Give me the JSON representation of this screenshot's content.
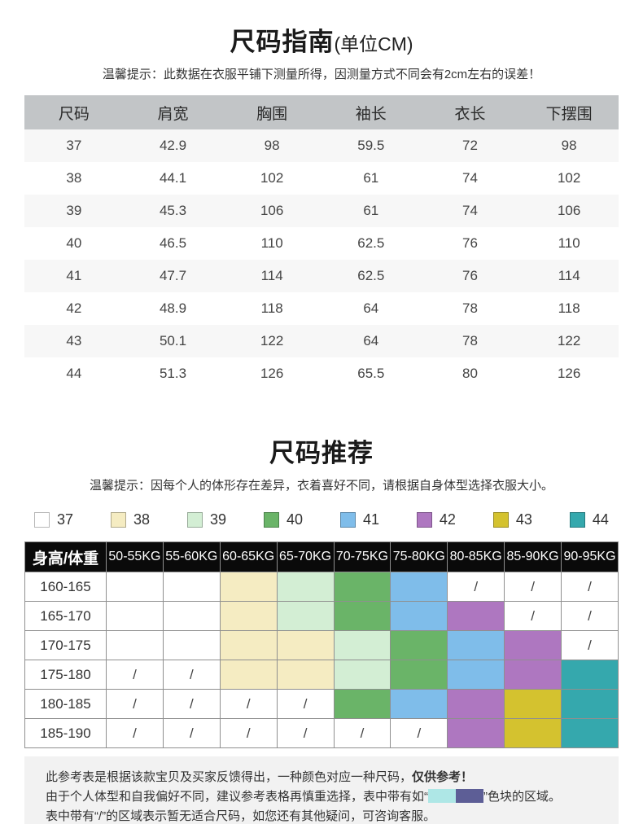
{
  "size_guide": {
    "title": "尺码指南",
    "unit_suffix": "(单位CM)",
    "tip": "温馨提示：此数据在衣服平铺下测量所得，因测量方式不同会有2cm左右的误差！",
    "columns": [
      "尺码",
      "肩宽",
      "胸围",
      "袖长",
      "衣长",
      "下摆围"
    ],
    "rows": [
      [
        "37",
        "42.9",
        "98",
        "59.5",
        "72",
        "98"
      ],
      [
        "38",
        "44.1",
        "102",
        "61",
        "74",
        "102"
      ],
      [
        "39",
        "45.3",
        "106",
        "61",
        "74",
        "106"
      ],
      [
        "40",
        "46.5",
        "110",
        "62.5",
        "76",
        "110"
      ],
      [
        "41",
        "47.7",
        "114",
        "62.5",
        "76",
        "114"
      ],
      [
        "42",
        "48.9",
        "118",
        "64",
        "78",
        "118"
      ],
      [
        "43",
        "50.1",
        "122",
        "64",
        "78",
        "122"
      ],
      [
        "44",
        "51.3",
        "126",
        "65.5",
        "80",
        "126"
      ]
    ]
  },
  "size_recommend": {
    "title": "尺码推荐",
    "tip": "温馨提示：因每个人的体形存在差异，衣着喜好不同，请根据自身体型选择衣服大小。",
    "sizes": [
      "37",
      "38",
      "39",
      "40",
      "41",
      "42",
      "43",
      "44"
    ],
    "size_colors": {
      "37": "#ffffff",
      "38": "#f5ecc2",
      "39": "#d3eed4",
      "40": "#6ab468",
      "41": "#7fbdea",
      "42": "#ae77c0",
      "43": "#d4c22f",
      "44": "#35a8ad"
    },
    "matrix": {
      "corner_label": "身高/体重",
      "weight_columns": [
        "50-55KG",
        "55-60KG",
        "60-65KG",
        "65-70KG",
        "70-75KG",
        "75-80KG",
        "80-85KG",
        "85-90KG",
        "90-95KG"
      ],
      "rows": [
        {
          "height": "160-165",
          "cells": [
            "37",
            "37",
            "38",
            "39",
            "40",
            "41",
            "/",
            "/",
            "/"
          ]
        },
        {
          "height": "165-170",
          "cells": [
            "37",
            "37",
            "38",
            "39",
            "40",
            "41",
            "42",
            "/",
            "/"
          ]
        },
        {
          "height": "170-175",
          "cells": [
            "37",
            "37",
            "38",
            "38",
            "39",
            "40",
            "41",
            "42",
            "/"
          ]
        },
        {
          "height": "175-180",
          "cells": [
            "/",
            "/",
            "38",
            "38",
            "39",
            "40",
            "41",
            "42",
            "44"
          ]
        },
        {
          "height": "180-185",
          "cells": [
            "/",
            "/",
            "/",
            "/",
            "40",
            "41",
            "42",
            "43",
            "44"
          ]
        },
        {
          "height": "185-190",
          "cells": [
            "/",
            "/",
            "/",
            "/",
            "/",
            "/",
            "42",
            "43",
            "44"
          ]
        }
      ],
      "empty_marker": "/"
    },
    "notes": {
      "line1_text": "此参考表是根据该款宝贝及买家反馈得出，一种颜色对应一种尺码，",
      "line1_strong": "仅供参考！",
      "line2_prefix": "由于个人体型和自我偏好不同，建议参考表格再慎重选择，表中带有如“",
      "line2_suffix": "”色块的区域。",
      "line3_text": "表中带有“/”的区域表示暂无适合尺码，如您还有其他疑问，可咨询客服。",
      "swatch_colors": {
        "cyan": "#aee7e6",
        "indigo": "#5d5e96"
      }
    }
  }
}
